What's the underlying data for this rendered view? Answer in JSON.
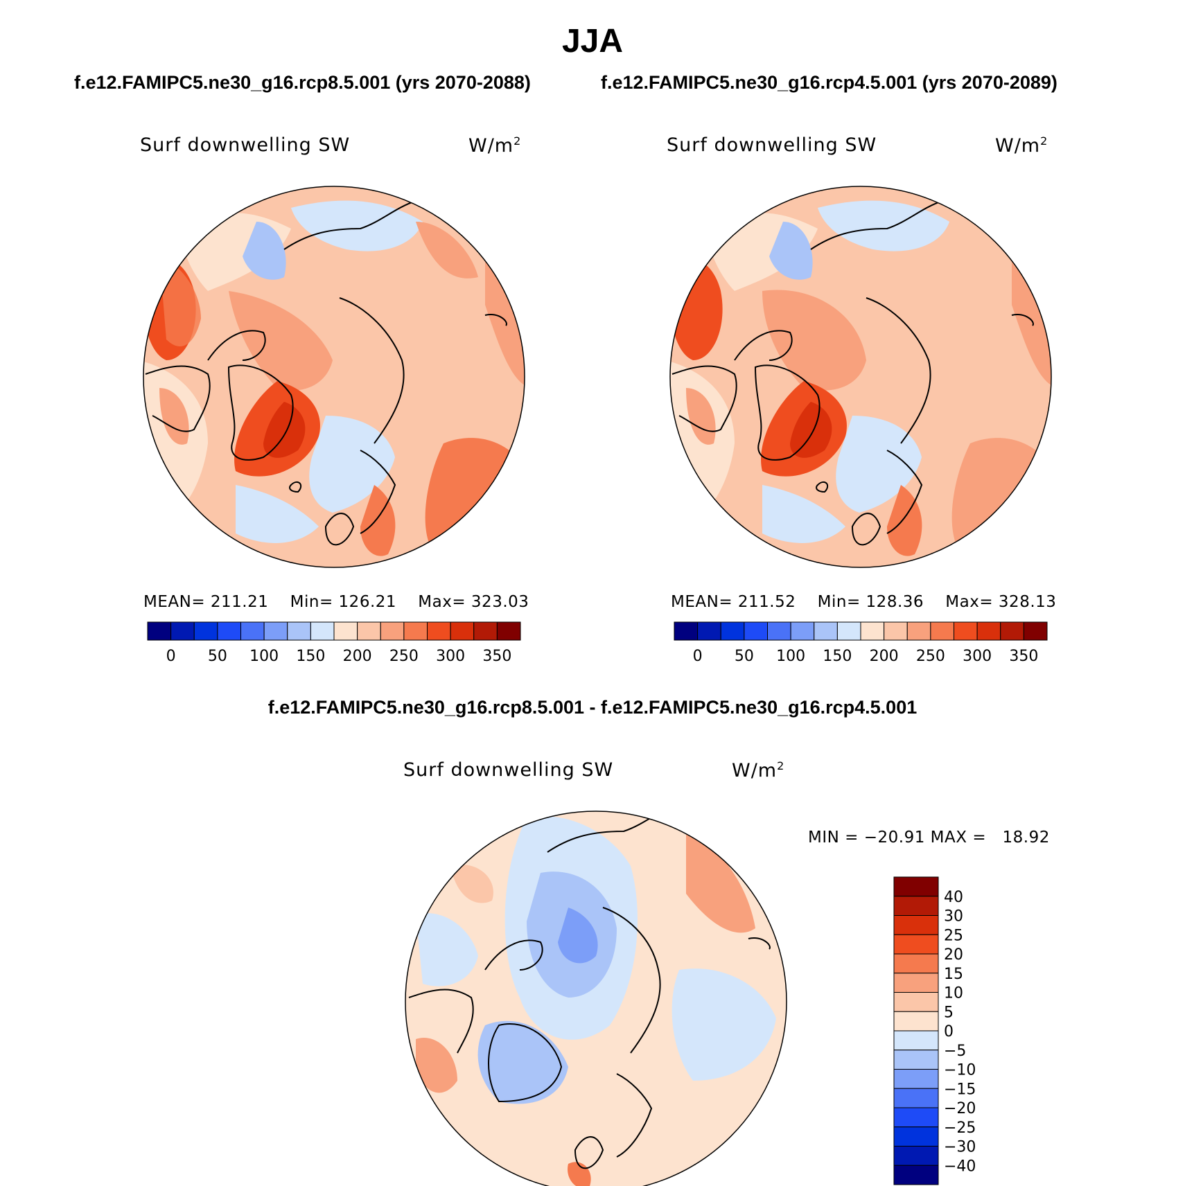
{
  "title": "JJA",
  "panels": [
    {
      "case": "f.e12.FAMIPC5.ne30_g16.rcp8.5.001 (yrs 2070-2088)",
      "variable": "Surf downwelling SW",
      "units": "W/m",
      "units_sup": "2",
      "mean_label": "MEAN=",
      "mean": "211.21",
      "min_label": "Min=",
      "min": "126.21",
      "max_label": "Max=",
      "max": "323.03"
    },
    {
      "case": "f.e12.FAMIPC5.ne30_g16.rcp4.5.001 (yrs 2070-2089)",
      "variable": "Surf downwelling SW",
      "units": "W/m",
      "units_sup": "2",
      "mean_label": "MEAN=",
      "mean": "211.52",
      "min_label": "Min=",
      "min": "128.36",
      "max_label": "Max=",
      "max": "328.13"
    }
  ],
  "abs_colorbar": {
    "ticks": [
      "0",
      "50",
      "100",
      "150",
      "200",
      "250",
      "300",
      "350"
    ],
    "colors": [
      "#00007f",
      "#0019b2",
      "#0033dd",
      "#1e4bf7",
      "#4a72f7",
      "#7c9ef8",
      "#aac4f8",
      "#d4e6fb",
      "#fde3cf",
      "#fbc6a9",
      "#f8a17d",
      "#f57a4e",
      "#ef4d1f",
      "#d9300b",
      "#b21a06",
      "#800000"
    ]
  },
  "diff": {
    "title": "f.e12.FAMIPC5.ne30_g16.rcp8.5.001 - f.e12.FAMIPC5.ne30_g16.rcp4.5.001",
    "variable": "Surf downwelling SW",
    "units": "W/m",
    "units_sup": "2",
    "min_label": "MIN =",
    "min": "−20.91",
    "max_label": "MAX =",
    "max": "18.92",
    "ticks": [
      "40",
      "30",
      "25",
      "20",
      "15",
      "10",
      "5",
      "0",
      "−5",
      "−10",
      "−15",
      "−20",
      "−25",
      "−30",
      "−40"
    ],
    "colors": [
      "#800000",
      "#b21a06",
      "#d9300b",
      "#ef4d1f",
      "#f57a4e",
      "#f8a17d",
      "#fbc6a9",
      "#fde3cf",
      "#d4e6fb",
      "#aac4f8",
      "#7c9ef8",
      "#4a72f7",
      "#1e4bf7",
      "#0033dd",
      "#0019b2",
      "#00007f"
    ]
  },
  "colors": {
    "map_base_abs": "#fbc6a9",
    "map_base_diff": "#fde3cf",
    "coast": "#000000"
  }
}
